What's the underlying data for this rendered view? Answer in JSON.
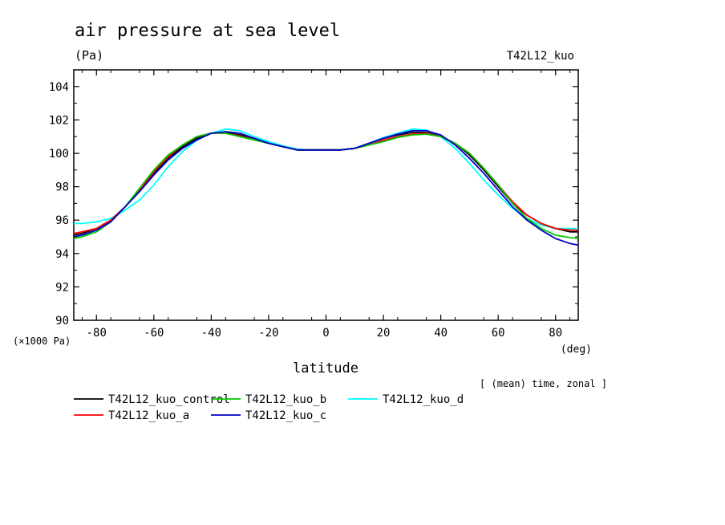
{
  "chart_data": {
    "type": "line",
    "title": "air pressure at sea level",
    "unit_label": "(Pa)",
    "experiment_label": "T42L12_kuo",
    "xlabel": "latitude",
    "x_unit_label": "(deg)",
    "y_scale_label": "(×1000 Pa)",
    "averaging_note": "[ (mean) time, zonal ]",
    "xlim": [
      -87.9,
      87.9
    ],
    "ylim": [
      90,
      105
    ],
    "x_ticks": [
      -80,
      -60,
      -40,
      -20,
      0,
      20,
      40,
      60,
      80
    ],
    "x_tick_labels": [
      "-80",
      "-60",
      "-40",
      "-20",
      "0",
      "20",
      "40",
      "60",
      "80"
    ],
    "y_ticks": [
      90,
      92,
      94,
      96,
      98,
      100,
      102,
      104
    ],
    "y_tick_labels": [
      "90",
      "92",
      "94",
      "96",
      "98",
      "100",
      "102",
      "104"
    ],
    "grid": false,
    "legend_position": "bottom-left",
    "x": [
      -87.9,
      -85,
      -80,
      -75,
      -70,
      -65,
      -60,
      -55,
      -50,
      -45,
      -40,
      -35,
      -30,
      -25,
      -20,
      -15,
      -10,
      -5,
      0,
      5,
      10,
      15,
      20,
      25,
      30,
      35,
      40,
      45,
      50,
      55,
      60,
      65,
      70,
      75,
      80,
      85,
      87.9
    ],
    "series": [
      {
        "name": "T42L12_kuo_control",
        "color": "#000000",
        "values": [
          95.1,
          95.2,
          95.5,
          96.0,
          96.8,
          97.8,
          98.8,
          99.7,
          100.4,
          100.9,
          101.2,
          101.25,
          101.1,
          100.9,
          100.6,
          100.4,
          100.2,
          100.2,
          100.2,
          100.2,
          100.3,
          100.6,
          100.9,
          101.1,
          101.25,
          101.25,
          101.0,
          100.6,
          99.9,
          99.0,
          98.0,
          97.0,
          96.3,
          95.8,
          95.5,
          95.3,
          95.3
        ]
      },
      {
        "name": "T42L12_kuo_a",
        "color": "#ff0000",
        "values": [
          95.2,
          95.3,
          95.5,
          96.0,
          96.8,
          97.8,
          98.9,
          99.8,
          100.5,
          101.0,
          101.2,
          101.2,
          101.05,
          100.8,
          100.6,
          100.4,
          100.2,
          100.2,
          100.2,
          100.2,
          100.3,
          100.5,
          100.8,
          101.0,
          101.15,
          101.2,
          101.0,
          100.6,
          100.0,
          99.1,
          98.1,
          97.1,
          96.3,
          95.8,
          95.5,
          95.4,
          95.4
        ]
      },
      {
        "name": "T42L12_kuo_b",
        "color": "#00c800",
        "values": [
          94.9,
          95.0,
          95.3,
          95.9,
          96.8,
          97.9,
          99.0,
          99.9,
          100.5,
          101.0,
          101.2,
          101.2,
          101.0,
          100.8,
          100.6,
          100.4,
          100.2,
          100.2,
          100.2,
          100.2,
          100.3,
          100.5,
          100.7,
          100.95,
          101.1,
          101.15,
          101.0,
          100.6,
          100.0,
          99.1,
          98.1,
          97.0,
          96.1,
          95.5,
          95.1,
          94.95,
          94.9
        ]
      },
      {
        "name": "T42L12_kuo_c",
        "color": "#0000c8",
        "values": [
          95.0,
          95.1,
          95.4,
          95.9,
          96.8,
          97.7,
          98.7,
          99.6,
          100.3,
          100.8,
          101.2,
          101.3,
          101.2,
          100.9,
          100.6,
          100.4,
          100.2,
          100.2,
          100.2,
          100.2,
          100.3,
          100.6,
          100.9,
          101.15,
          101.35,
          101.35,
          101.1,
          100.5,
          99.7,
          98.8,
          97.8,
          96.8,
          96.0,
          95.4,
          94.9,
          94.6,
          94.5
        ]
      },
      {
        "name": "T42L12_kuo_d",
        "color": "#00ffff",
        "values": [
          95.8,
          95.8,
          95.9,
          96.1,
          96.6,
          97.2,
          98.1,
          99.2,
          100.1,
          100.8,
          101.2,
          101.45,
          101.35,
          101.0,
          100.7,
          100.45,
          100.25,
          100.2,
          100.2,
          100.2,
          100.3,
          100.6,
          100.95,
          101.2,
          101.45,
          101.4,
          101.0,
          100.3,
          99.4,
          98.4,
          97.5,
          96.7,
          96.1,
          95.7,
          95.5,
          95.5,
          95.5
        ]
      }
    ]
  }
}
